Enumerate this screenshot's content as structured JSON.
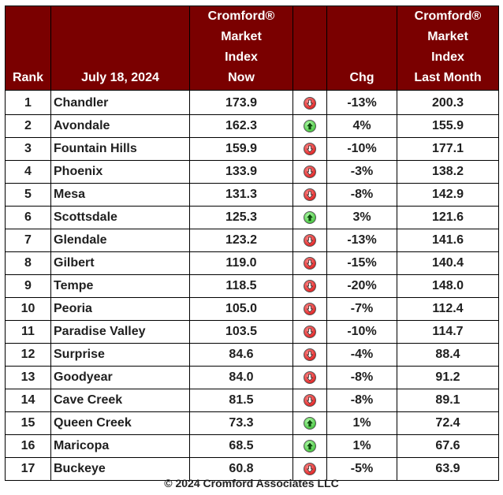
{
  "header": {
    "rank": "Rank",
    "date": "July 18, 2024",
    "now_lines": [
      "Cromford®",
      "Market",
      "Index",
      "Now"
    ],
    "chg": "Chg",
    "last_lines": [
      "Cromford®",
      "Market",
      "Index",
      "Last Month"
    ]
  },
  "rows": [
    {
      "rank": "1",
      "city": "Chandler",
      "now": "173.9",
      "dir": "down",
      "chg": "-13%",
      "last": "200.3"
    },
    {
      "rank": "2",
      "city": "Avondale",
      "now": "162.3",
      "dir": "up",
      "chg": "4%",
      "last": "155.9"
    },
    {
      "rank": "3",
      "city": "Fountain Hills",
      "now": "159.9",
      "dir": "down",
      "chg": "-10%",
      "last": "177.1"
    },
    {
      "rank": "4",
      "city": "Phoenix",
      "now": "133.9",
      "dir": "down",
      "chg": "-3%",
      "last": "138.2"
    },
    {
      "rank": "5",
      "city": "Mesa",
      "now": "131.3",
      "dir": "down",
      "chg": "-8%",
      "last": "142.9"
    },
    {
      "rank": "6",
      "city": "Scottsdale",
      "now": "125.3",
      "dir": "up",
      "chg": "3%",
      "last": "121.6"
    },
    {
      "rank": "7",
      "city": "Glendale",
      "now": "123.2",
      "dir": "down",
      "chg": "-13%",
      "last": "141.6"
    },
    {
      "rank": "8",
      "city": "Gilbert",
      "now": "119.0",
      "dir": "down",
      "chg": "-15%",
      "last": "140.4"
    },
    {
      "rank": "9",
      "city": "Tempe",
      "now": "118.5",
      "dir": "down",
      "chg": "-20%",
      "last": "148.0"
    },
    {
      "rank": "10",
      "city": "Peoria",
      "now": "105.0",
      "dir": "down",
      "chg": "-7%",
      "last": "112.4"
    },
    {
      "rank": "11",
      "city": "Paradise Valley",
      "now": "103.5",
      "dir": "down",
      "chg": "-10%",
      "last": "114.7"
    },
    {
      "rank": "12",
      "city": "Surprise",
      "now": "84.6",
      "dir": "down",
      "chg": "-4%",
      "last": "88.4"
    },
    {
      "rank": "13",
      "city": "Goodyear",
      "now": "84.0",
      "dir": "down",
      "chg": "-8%",
      "last": "91.2"
    },
    {
      "rank": "14",
      "city": "Cave Creek",
      "now": "81.5",
      "dir": "down",
      "chg": "-8%",
      "last": "89.1"
    },
    {
      "rank": "15",
      "city": "Queen Creek",
      "now": "73.3",
      "dir": "up",
      "chg": "1%",
      "last": "72.4"
    },
    {
      "rank": "16",
      "city": "Maricopa",
      "now": "68.5",
      "dir": "up",
      "chg": "1%",
      "last": "67.6"
    },
    {
      "rank": "17",
      "city": "Buckeye",
      "now": "60.8",
      "dir": "down",
      "chg": "-5%",
      "last": "63.9"
    }
  ],
  "colors": {
    "header_bg": "#7a0000",
    "header_text": "#ffffff",
    "down": "#d60000",
    "up": "#21b21a"
  },
  "footer": "© 2024 Cromford Associates LLC"
}
